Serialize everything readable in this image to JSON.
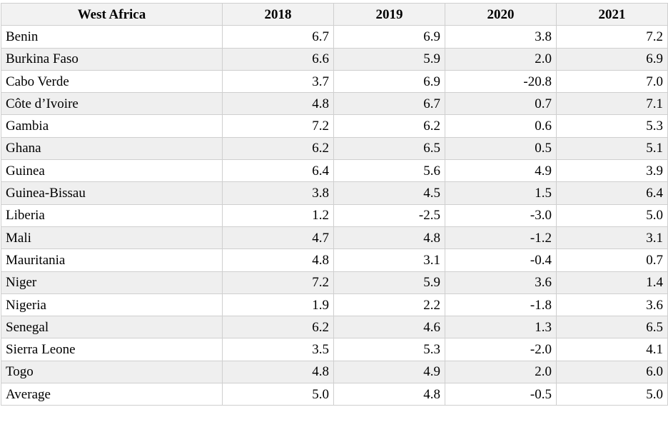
{
  "table": {
    "headers": [
      "West Africa",
      "2018",
      "2019",
      "2020",
      "2021"
    ],
    "rows": [
      [
        "Benin",
        "6.7",
        "6.9",
        "3.8",
        "7.2"
      ],
      [
        "Burkina Faso",
        "6.6",
        "5.9",
        "2.0",
        "6.9"
      ],
      [
        "Cabo Verde",
        "3.7",
        "6.9",
        "-20.8",
        "7.0"
      ],
      [
        "Côte d’Ivoire",
        "4.8",
        "6.7",
        "0.7",
        "7.1"
      ],
      [
        "Gambia",
        "7.2",
        "6.2",
        "0.6",
        "5.3"
      ],
      [
        "Ghana",
        "6.2",
        "6.5",
        "0.5",
        "5.1"
      ],
      [
        "Guinea",
        "6.4",
        "5.6",
        "4.9",
        "3.9"
      ],
      [
        "Guinea-Bissau",
        "3.8",
        "4.5",
        "1.5",
        "6.4"
      ],
      [
        "Liberia",
        "1.2",
        "-2.5",
        "-3.0",
        "5.0"
      ],
      [
        "Mali",
        "4.7",
        "4.8",
        "-1.2",
        "3.1"
      ],
      [
        "Mauritania",
        "4.8",
        "3.1",
        "-0.4",
        "0.7"
      ],
      [
        "Niger",
        "7.2",
        "5.9",
        "3.6",
        "1.4"
      ],
      [
        "Nigeria",
        "1.9",
        "2.2",
        "-1.8",
        "3.6"
      ],
      [
        "Senegal",
        "6.2",
        "4.6",
        "1.3",
        "6.5"
      ],
      [
        "Sierra Leone",
        "3.5",
        "5.3",
        "-2.0",
        "4.1"
      ],
      [
        "Togo",
        "4.8",
        "4.9",
        "2.0",
        "6.0"
      ],
      [
        "Average",
        "5.0",
        "4.8",
        "-0.5",
        "5.0"
      ]
    ]
  }
}
